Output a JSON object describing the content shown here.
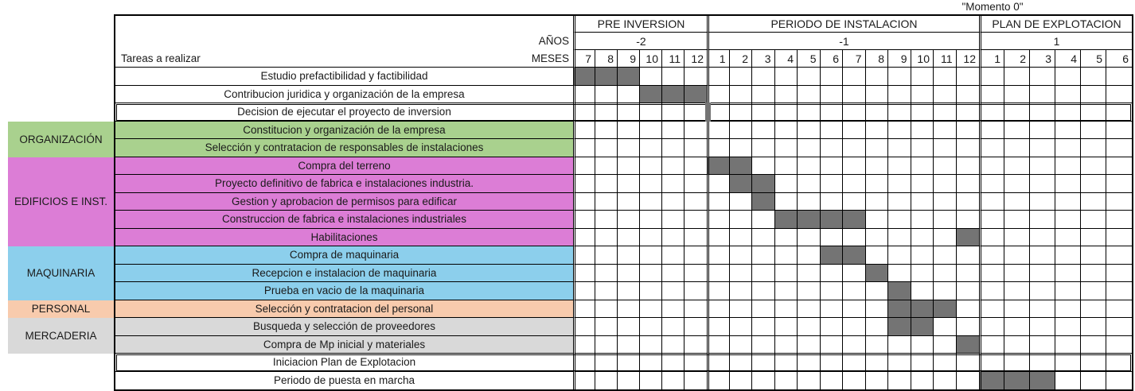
{
  "momento_label": "\"Momento 0\"",
  "colors": {
    "bar": "#747474",
    "grid_line": "#000000",
    "organizacion": "#A9D18E",
    "edificios": "#DC7DD6",
    "maquinaria": "#8CCFEC",
    "personal": "#F8CBAD",
    "mercaderia": "#D9D9D9"
  },
  "header": {
    "tasks_column_label": "Tareas a realizar",
    "years_label": "AÑOS",
    "months_label": "MESES"
  },
  "categories": [
    {
      "label": "ORGANIZACIÓN",
      "color_key": "organizacion",
      "row_start": 4,
      "row_end": 5
    },
    {
      "label": "EDIFICIOS E INST.",
      "color_key": "edificios",
      "row_start": 6,
      "row_end": 10
    },
    {
      "label": "MAQUINARIA",
      "color_key": "maquinaria",
      "row_start": 11,
      "row_end": 13
    },
    {
      "label": "PERSONAL",
      "color_key": "personal",
      "row_start": 14,
      "row_end": 14
    },
    {
      "label": "MERCADERIA",
      "color_key": "mercaderia",
      "row_start": 15,
      "row_end": 16
    }
  ],
  "chart_data": {
    "type": "table",
    "subtype": "gantt",
    "title": "\"Momento 0\"",
    "sections": [
      {
        "phase": "PRE INVERSION",
        "year": "-2",
        "months": [
          "7",
          "8",
          "9",
          "10",
          "11",
          "12"
        ]
      },
      {
        "phase": "PERIODO DE INSTALACION",
        "year": "-1",
        "months": [
          "1",
          "2",
          "3",
          "4",
          "5",
          "6",
          "7",
          "8",
          "9",
          "10",
          "11",
          "12"
        ]
      },
      {
        "phase": "PLAN DE EXPLOTACION",
        "year": "1",
        "months": [
          "1",
          "2",
          "3",
          "4",
          "5",
          "6"
        ]
      }
    ],
    "tasks": [
      {
        "label": "Estudio prefactibilidad y factibilidad",
        "category": "",
        "filled_columns": [
          0,
          1,
          2
        ],
        "schedule": "Año -2, meses 7-9",
        "boxed": false,
        "momento_marker": false
      },
      {
        "label": "Contribucion juridica y organización de la empresa",
        "category": "",
        "filled_columns": [
          3,
          4,
          5
        ],
        "schedule": "Año -2, meses 10-12",
        "boxed": false,
        "momento_marker": false
      },
      {
        "label": "Decision de ejecutar el proyecto de inversion",
        "category": "",
        "filled_columns": [],
        "schedule": "Marcador en el límite año -2 mes 12 / año -1 mes 1",
        "boxed": true,
        "momento_marker": true
      },
      {
        "label": "Constitucion y organización de la empresa",
        "category": "ORGANIZACIÓN",
        "filled_columns": [],
        "schedule": "",
        "boxed": false,
        "momento_marker": false
      },
      {
        "label": "Selección y contratacion de responsables de instalaciones",
        "category": "ORGANIZACIÓN",
        "filled_columns": [],
        "schedule": "",
        "boxed": false,
        "momento_marker": false
      },
      {
        "label": "Compra del terreno",
        "category": "EDIFICIOS E INST.",
        "filled_columns": [
          6,
          7
        ],
        "schedule": "Año -1, meses 1-2",
        "boxed": false,
        "momento_marker": false
      },
      {
        "label": "Proyecto definitivo de fabrica e instalaciones industria.",
        "category": "EDIFICIOS E INST.",
        "filled_columns": [
          7,
          8
        ],
        "schedule": "Año -1, meses 2-3",
        "boxed": false,
        "momento_marker": false
      },
      {
        "label": "Gestion y aprobacion de permisos para edificar",
        "category": "EDIFICIOS E INST.",
        "filled_columns": [
          8
        ],
        "schedule": "Año -1, mes 3",
        "boxed": false,
        "momento_marker": false
      },
      {
        "label": "Construccion de fabrica e instalaciones industriales",
        "category": "EDIFICIOS E INST.",
        "filled_columns": [
          9,
          10,
          11,
          12
        ],
        "schedule": "Año -1, meses 4-7",
        "boxed": false,
        "momento_marker": false
      },
      {
        "label": "Habilitaciones",
        "category": "EDIFICIOS E INST.",
        "filled_columns": [
          17
        ],
        "schedule": "Año -1, mes 12",
        "boxed": false,
        "momento_marker": false
      },
      {
        "label": "Compra de maquinaria",
        "category": "MAQUINARIA",
        "filled_columns": [
          11,
          12
        ],
        "schedule": "Año -1, meses 6-7",
        "boxed": false,
        "momento_marker": false
      },
      {
        "label": "Recepcion e instalacion de maquinaria",
        "category": "MAQUINARIA",
        "filled_columns": [
          13
        ],
        "schedule": "Año -1, mes 8",
        "boxed": false,
        "momento_marker": false
      },
      {
        "label": "Prueba en vacio de la maquinaria",
        "category": "MAQUINARIA",
        "filled_columns": [
          14
        ],
        "schedule": "Año -1, mes 9",
        "boxed": false,
        "momento_marker": false
      },
      {
        "label": "Selección y contratacion del personal",
        "category": "PERSONAL",
        "filled_columns": [
          14,
          15,
          16
        ],
        "schedule": "Año -1, meses 9-11",
        "boxed": false,
        "momento_marker": false
      },
      {
        "label": "Busqueda y selección de proveedores",
        "category": "MERCADERIA",
        "filled_columns": [
          14,
          15
        ],
        "schedule": "Año -1, meses 9-10",
        "boxed": false,
        "momento_marker": false
      },
      {
        "label": "Compra de Mp inicial y materiales",
        "category": "MERCADERIA",
        "filled_columns": [
          17
        ],
        "schedule": "Año -1, mes 12",
        "boxed": false,
        "momento_marker": false
      },
      {
        "label": "Iniciacion Plan de Explotacion",
        "category": "",
        "filled_columns": [],
        "schedule": "",
        "boxed": true,
        "momento_marker": false
      },
      {
        "label": "Periodo de puesta en marcha",
        "category": "",
        "filled_columns": [
          18,
          19,
          20
        ],
        "schedule": "Año 1, meses 1-3",
        "boxed": false,
        "momento_marker": false
      }
    ]
  }
}
